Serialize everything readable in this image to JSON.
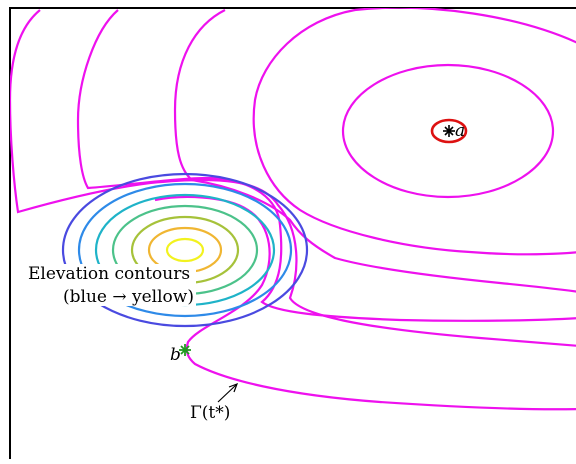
{
  "colors": {
    "magenta": "#ee11ee",
    "red": "#dd1111",
    "green": "#229922",
    "frame": "#000000",
    "elevation": [
      "#4a4ae0",
      "#2e8ae8",
      "#1fb3c8",
      "#4cc28a",
      "#a6c23a",
      "#f0b632",
      "#f2f21f"
    ]
  },
  "labels": {
    "elevation_line1": "Elevation contours",
    "elevation_line2": "(blue → yellow)",
    "point_a": "a",
    "point_b": "b",
    "gamma": "Γ(t*)"
  },
  "markers": {
    "a": "asterisk",
    "b": "asterisk"
  }
}
